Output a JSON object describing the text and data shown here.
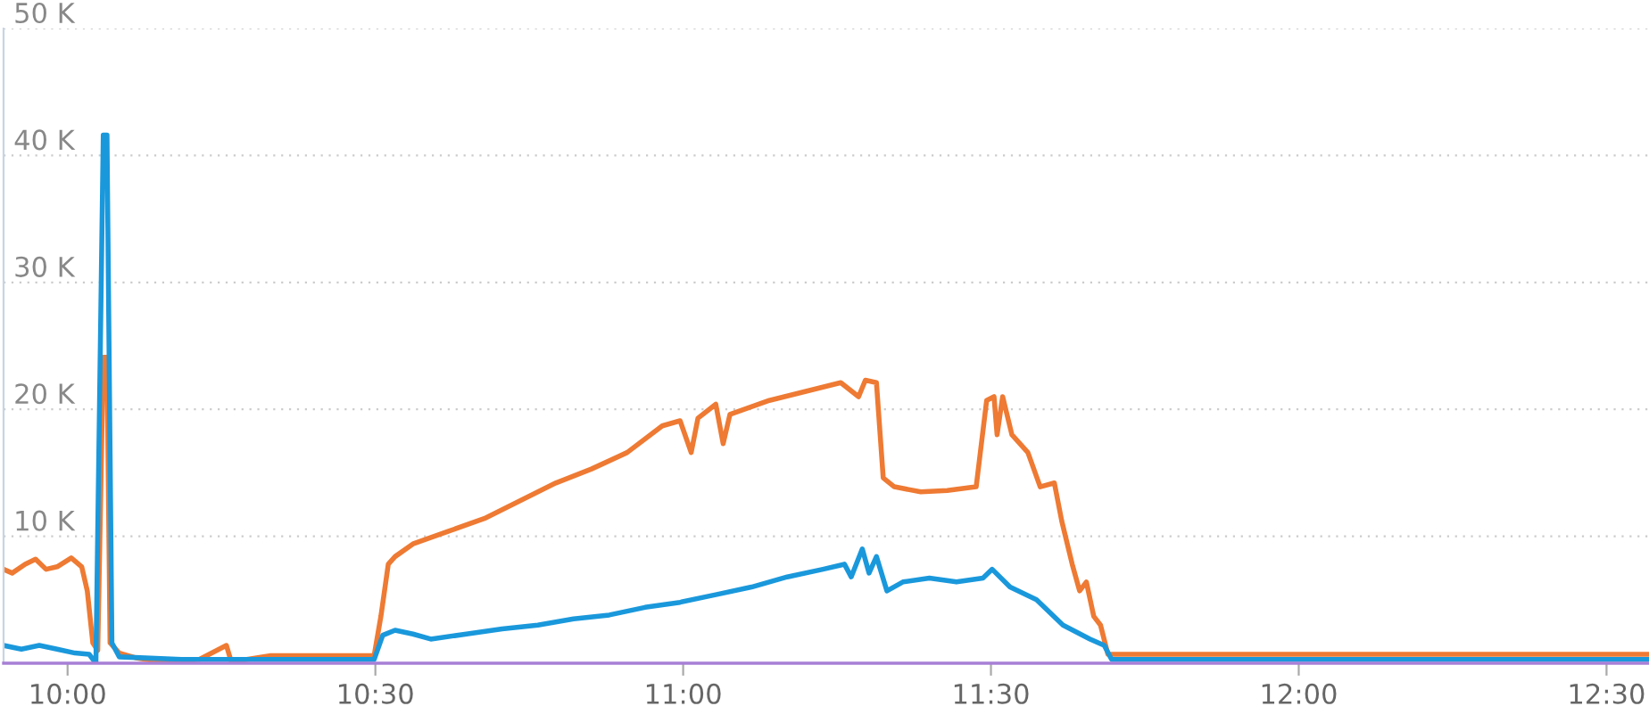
{
  "chart_data": {
    "type": "line",
    "xlim": [
      9.896,
      12.569
    ],
    "xticks": [
      {
        "value": 10,
        "label": "10:00"
      },
      {
        "value": 10.5,
        "label": "10:30"
      },
      {
        "value": 11,
        "label": "11:00"
      },
      {
        "value": 11.5,
        "label": "11:30"
      },
      {
        "value": 12,
        "label": "12:00"
      },
      {
        "value": 12.5,
        "label": "12:30"
      }
    ],
    "ylim": [
      0,
      50
    ],
    "yticks": [
      {
        "value": 0,
        "label": null
      },
      {
        "value": 10,
        "label": "10 K"
      },
      {
        "value": 20,
        "label": "20 K"
      },
      {
        "value": 30,
        "label": "30 K"
      },
      {
        "value": 40,
        "label": "40 K"
      },
      {
        "value": 50,
        "label": "50 K"
      }
    ],
    "grid": "y",
    "series": [
      {
        "color": "#ee7a33",
        "x": [
          9.896,
          9.91,
          9.931,
          9.948,
          9.965,
          9.983,
          10.006,
          10.023,
          10.032,
          10.041,
          10.049,
          10.058,
          10.064,
          10.069,
          10.084,
          10.113,
          10.156,
          10.214,
          10.258,
          10.266,
          10.33,
          10.417,
          10.475,
          10.498,
          10.509,
          10.521,
          10.532,
          10.561,
          10.619,
          10.677,
          10.735,
          10.793,
          10.851,
          10.909,
          10.966,
          10.995,
          11.013,
          11.024,
          11.053,
          11.065,
          11.076,
          11.14,
          11.198,
          11.256,
          11.285,
          11.296,
          11.314,
          11.325,
          11.343,
          11.386,
          11.429,
          11.476,
          11.493,
          11.505,
          11.51,
          11.519,
          11.534,
          11.56,
          11.58,
          11.603,
          11.615,
          11.632,
          11.644,
          11.655,
          11.667,
          11.678,
          11.69,
          11.748,
          11.921,
          12.211,
          12.569
        ],
        "values": [
          7.4,
          7.1,
          7.8,
          8.2,
          7.4,
          7.6,
          8.3,
          7.6,
          5.7,
          1.6,
          1.0,
          24.1,
          24.1,
          1.6,
          0.8,
          0.4,
          0.1,
          0.3,
          1.4,
          0.1,
          0.6,
          0.6,
          0.6,
          0.6,
          3.7,
          7.8,
          8.4,
          9.4,
          10.4,
          11.4,
          12.8,
          14.2,
          15.3,
          16.6,
          18.7,
          19.1,
          16.6,
          19.3,
          20.4,
          17.3,
          19.6,
          20.7,
          21.4,
          22.1,
          21.0,
          22.3,
          22.1,
          14.6,
          13.9,
          13.5,
          13.6,
          13.9,
          20.7,
          21.0,
          18.0,
          21.0,
          18.0,
          16.6,
          13.9,
          14.2,
          11.2,
          7.8,
          5.7,
          6.4,
          3.7,
          3.0,
          0.7,
          0.7,
          0.7,
          0.7,
          0.7
        ]
      },
      {
        "color": "#1a98dc",
        "x": [
          9.896,
          9.925,
          9.954,
          9.983,
          10.012,
          10.035,
          10.046,
          10.058,
          10.064,
          10.072,
          10.084,
          10.185,
          10.475,
          10.498,
          10.512,
          10.532,
          10.561,
          10.59,
          10.648,
          10.706,
          10.764,
          10.822,
          10.88,
          10.938,
          10.995,
          11.053,
          11.111,
          11.169,
          11.227,
          11.262,
          11.273,
          11.291,
          11.302,
          11.314,
          11.331,
          11.357,
          11.4,
          11.444,
          11.487,
          11.502,
          11.531,
          11.574,
          11.617,
          11.661,
          11.684,
          11.696,
          11.777,
          12.569
        ],
        "values": [
          1.4,
          1.1,
          1.4,
          1.1,
          0.8,
          0.7,
          0.0,
          41.6,
          41.6,
          1.6,
          0.5,
          0.3,
          0.3,
          0.3,
          2.2,
          2.6,
          2.3,
          1.9,
          2.3,
          2.7,
          3.0,
          3.5,
          3.8,
          4.4,
          4.8,
          5.4,
          6.0,
          6.8,
          7.4,
          7.8,
          6.8,
          9.0,
          7.1,
          8.4,
          5.7,
          6.4,
          6.7,
          6.4,
          6.7,
          7.4,
          6.0,
          5.0,
          3.0,
          1.9,
          1.4,
          0.3,
          0.3,
          0.3
        ]
      }
    ]
  }
}
